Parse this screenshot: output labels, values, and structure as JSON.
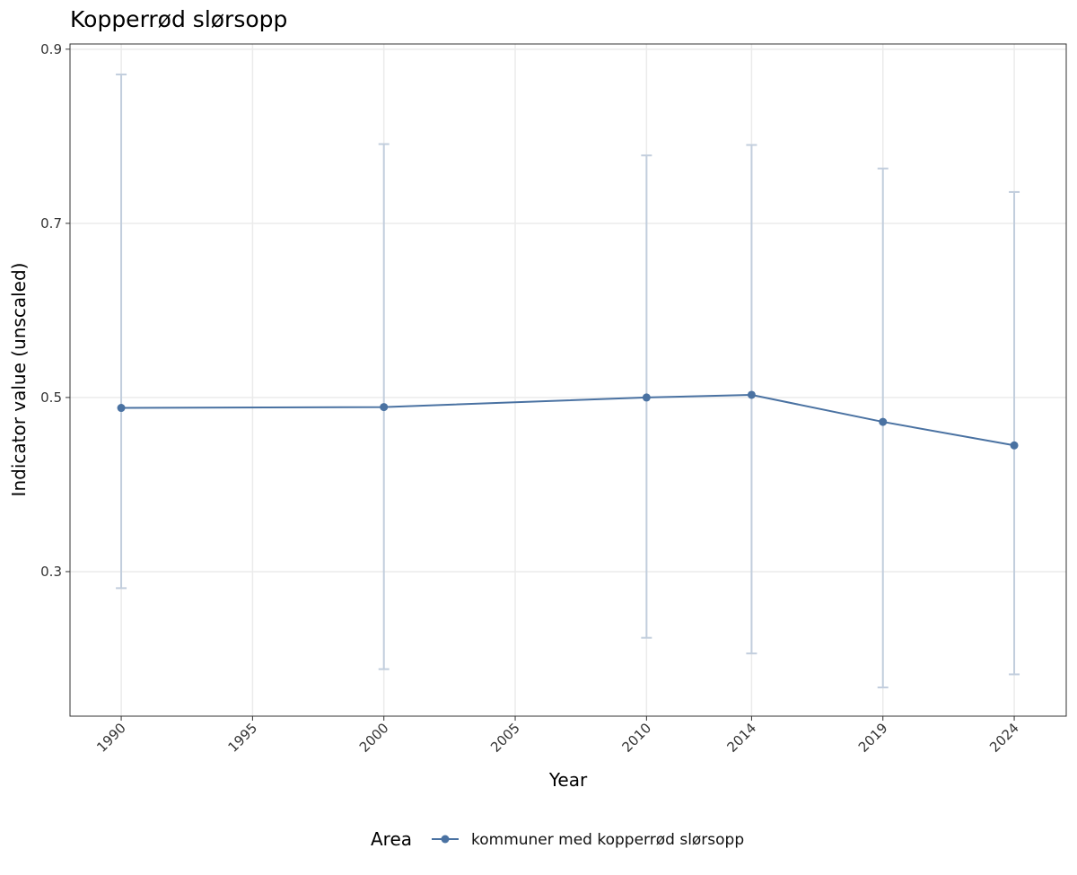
{
  "chart_data": {
    "type": "line",
    "title": "Kopperrød slørsopp",
    "x_label": "Year",
    "y_label": "Indicator value (unscaled)",
    "legend_title": "Area",
    "legend_position": "bottom",
    "x": [
      1990,
      2000,
      2010,
      2014,
      2019,
      2024
    ],
    "series": [
      {
        "name": "kommuner med kopperrød slørsopp",
        "color": "#4a72a2",
        "error_color": "#c2cedd",
        "values": [
          0.488,
          0.489,
          0.5,
          0.503,
          0.472,
          0.445
        ],
        "lower": [
          0.281,
          0.188,
          0.224,
          0.206,
          0.167,
          0.182
        ],
        "upper": [
          0.871,
          0.791,
          0.778,
          0.79,
          0.763,
          0.736
        ]
      }
    ],
    "xlim": [
      1988.05,
      2025.98
    ],
    "xticks": [
      1990,
      1995,
      2000,
      2005,
      2010,
      2014,
      2019,
      2024
    ],
    "ylim": [
      0.134,
      0.906
    ],
    "yticks": [
      0.3,
      0.5,
      0.7,
      0.9
    ],
    "grid": true
  }
}
